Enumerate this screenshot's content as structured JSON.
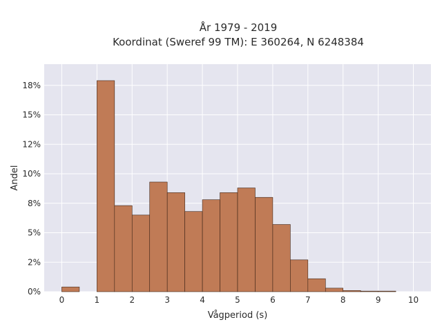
{
  "chart_data": {
    "type": "bar",
    "title_line1": "År 1979 - 2019",
    "title_line2": "Koordinat (Sweref 99 TM): E 360264, N 6248384",
    "xlabel": "Vågperiod (s)",
    "ylabel": "Andel",
    "bin_width": 0.5,
    "bins": [
      {
        "start": 0.0,
        "value": 0.4
      },
      {
        "start": 0.5,
        "value": 0.0
      },
      {
        "start": 1.0,
        "value": 17.9
      },
      {
        "start": 1.5,
        "value": 7.3
      },
      {
        "start": 2.0,
        "value": 6.5
      },
      {
        "start": 2.5,
        "value": 9.3
      },
      {
        "start": 3.0,
        "value": 8.4
      },
      {
        "start": 3.5,
        "value": 6.8
      },
      {
        "start": 4.0,
        "value": 7.8
      },
      {
        "start": 4.5,
        "value": 8.4
      },
      {
        "start": 5.0,
        "value": 8.8
      },
      {
        "start": 5.5,
        "value": 8.0
      },
      {
        "start": 6.0,
        "value": 5.7
      },
      {
        "start": 6.5,
        "value": 2.7
      },
      {
        "start": 7.0,
        "value": 1.1
      },
      {
        "start": 7.5,
        "value": 0.3
      },
      {
        "start": 8.0,
        "value": 0.1
      },
      {
        "start": 8.5,
        "value": 0.05
      },
      {
        "start": 9.0,
        "value": 0.05
      }
    ],
    "xlim": [
      -0.5,
      10.5
    ],
    "ylim": [
      0,
      19.3
    ],
    "x_ticks": [
      0,
      1,
      2,
      3,
      4,
      5,
      6,
      7,
      8,
      9,
      10
    ],
    "x_tick_labels": [
      "0",
      "1",
      "2",
      "3",
      "4",
      "5",
      "6",
      "7",
      "8",
      "9",
      "10"
    ],
    "y_ticks": [
      0,
      2.5,
      5,
      7.5,
      10,
      12.5,
      15,
      17.5
    ],
    "y_tick_labels": [
      "0%",
      "2%",
      "5%",
      "8%",
      "10%",
      "12%",
      "15%",
      "18%"
    ],
    "grid": true,
    "colors": {
      "bar_fill": "#c07b56",
      "bar_stroke": "#3d2417",
      "plot_bg": "#e5e5ef",
      "grid": "#ffffff"
    }
  }
}
